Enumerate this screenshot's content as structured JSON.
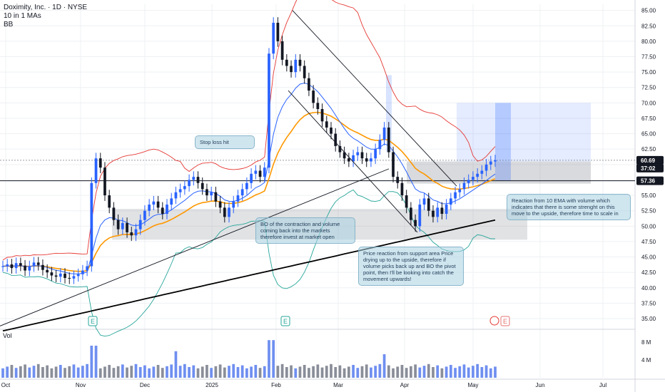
{
  "header": {
    "title": "Doximity, Inc. · 1D · NYSE",
    "indicator_1": "10 in 1 MAs",
    "indicator_2": "BB"
  },
  "annotations": {
    "stop_loss": "Stop loss hit",
    "bo_contraction": "BO of the contraction and volume coming back into the markets therefore invest at market open",
    "support": "Price reaction from support area Price drying up to the upside, therefore if volume picks back up and BO the pivot point, then I'll be looking into catch the movement upwards!",
    "ema_reaction": "Reaction from 10 EMA with volume which indicates that there is some strenght on this move to the upside, therefore time to scale in"
  },
  "price_tags": {
    "last": "60.69",
    "countdown": "37:02",
    "line": "57.36"
  },
  "volume_label": "Vol",
  "earnings_marker": "E",
  "colors": {
    "up": "#2962ff",
    "down": "#131722",
    "bb": "#e53935",
    "ema_fast": "#2962ff",
    "ema_mid": "#ff9800",
    "sma_long": "#000000",
    "bb_lower": "#26a69a",
    "volume": "#8a8e99",
    "volume_up": "#6f8ff0"
  },
  "chart_data": {
    "type": "candlestick",
    "title": "Doximity, Inc. · 1D · NYSE",
    "y_ticks": [
      "85.00",
      "82.50",
      "80.00",
      "77.50",
      "75.00",
      "72.50",
      "70.00",
      "67.50",
      "65.00",
      "62.50",
      "60.00",
      "57.50",
      "55.00",
      "52.50",
      "50.00",
      "47.50",
      "45.00",
      "42.50",
      "40.00",
      "37.50",
      "35.00"
    ],
    "y_range": [
      33.5,
      86
    ],
    "x_ticks": [
      "Oct",
      "Nov",
      "Dec",
      "2025",
      "Feb",
      "Mar",
      "Apr",
      "May",
      "Jun",
      "Jul"
    ],
    "volume_ticks": [
      "8 M",
      "4 M"
    ],
    "horizontal_line": 57.36,
    "last_price": 60.69,
    "close_approx": [
      43.5,
      43.8,
      43.2,
      44.0,
      43.6,
      42.8,
      43.5,
      44.1,
      43.7,
      42.9,
      42.5,
      42.0,
      41.8,
      42.3,
      41.6,
      41.5,
      41.9,
      42.2,
      42.8,
      43.5,
      57.0,
      61.0,
      59.5,
      55.0,
      53.0,
      51.0,
      49.5,
      50.5,
      49.0,
      48.5,
      49.5,
      51.0,
      52.5,
      53.5,
      54.0,
      53.0,
      52.0,
      53.5,
      54.5,
      55.5,
      56.0,
      56.5,
      57.5,
      58.0,
      57.0,
      56.0,
      55.0,
      55.5,
      54.0,
      53.0,
      51.5,
      53.0,
      54.0,
      55.0,
      56.0,
      57.0,
      58.5,
      59.0,
      58.0,
      59.5,
      78.0,
      83.0,
      80.0,
      77.0,
      76.0,
      75.0,
      77.0,
      76.0,
      74.0,
      72.0,
      70.0,
      69.0,
      67.0,
      66.0,
      65.0,
      63.0,
      62.0,
      61.0,
      60.5,
      61.5,
      62.0,
      61.0,
      60.5,
      61.0,
      62.5,
      64.0,
      66.0,
      62.0,
      58.0,
      57.0,
      55.0,
      53.0,
      51.0,
      50.0,
      53.5,
      54.5,
      52.5,
      51.5,
      53.0,
      52.0,
      53.5,
      54.5,
      55.5,
      56.0,
      57.0,
      57.5,
      58.0,
      58.5,
      59.0,
      60.0,
      60.5,
      60.69
    ],
    "series": [
      {
        "name": "BB"
      },
      {
        "name": "10 in 1 MAs"
      }
    ],
    "grid": true,
    "legend": "top-left"
  }
}
